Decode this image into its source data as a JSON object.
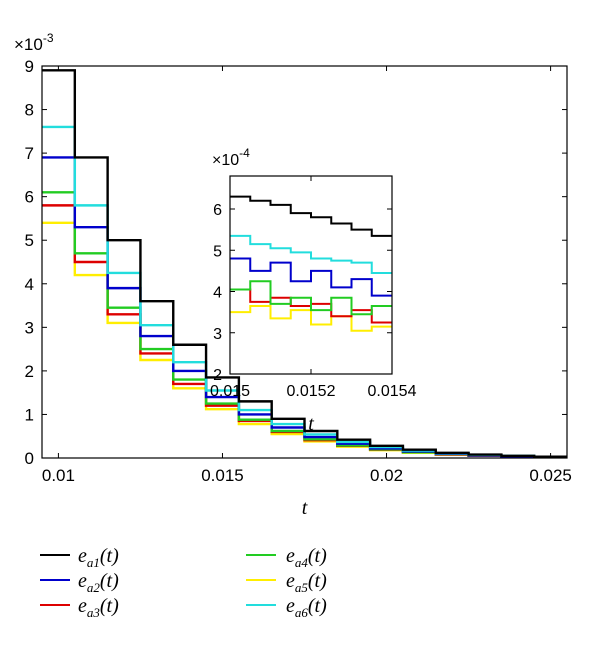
{
  "chart_data": [
    {
      "type": "line",
      "step": true,
      "x_label": "t",
      "y_exponent": "-3",
      "xlim": [
        0.0095,
        0.0255
      ],
      "ylim": [
        0,
        9
      ],
      "x_ticks": [
        0.01,
        0.015,
        0.02,
        0.025
      ],
      "x_tick_labels": [
        "0.01",
        "0.015",
        "0.02",
        "0.025"
      ],
      "y_ticks": [
        0,
        1,
        2,
        3,
        4,
        5,
        6,
        7,
        8,
        9
      ],
      "y_tick_labels": [
        "0",
        "1",
        "2",
        "3",
        "4",
        "5",
        "6",
        "7",
        "8",
        "9"
      ],
      "grid": false,
      "legend_position": "bottom",
      "series": [
        {
          "name": "e_a1(t)",
          "color": "#000000",
          "x": [
            0.0095,
            0.0105,
            0.0115,
            0.0125,
            0.0135,
            0.0145,
            0.0155,
            0.0165,
            0.0175,
            0.0185,
            0.0195,
            0.0205,
            0.0215,
            0.0225,
            0.0235,
            0.0245,
            0.0255
          ],
          "values": [
            8.9,
            6.9,
            5.0,
            3.6,
            2.6,
            1.85,
            1.3,
            0.9,
            0.62,
            0.42,
            0.28,
            0.19,
            0.12,
            0.08,
            0.05,
            0.03,
            0.02
          ]
        },
        {
          "name": "e_a2(t)",
          "color": "#0000cc",
          "x": [
            0.0095,
            0.0105,
            0.0115,
            0.0125,
            0.0135,
            0.0145,
            0.0155,
            0.0165,
            0.0175,
            0.0185,
            0.0195,
            0.0205,
            0.0215,
            0.0225,
            0.0235,
            0.0245,
            0.0255
          ],
          "values": [
            6.9,
            5.3,
            3.9,
            2.8,
            2.0,
            1.4,
            1.0,
            0.7,
            0.48,
            0.33,
            0.22,
            0.15,
            0.1,
            0.06,
            0.04,
            0.03,
            0.02
          ]
        },
        {
          "name": "e_a3(t)",
          "color": "#dd0000",
          "x": [
            0.0095,
            0.0105,
            0.0115,
            0.0125,
            0.0135,
            0.0145,
            0.0155,
            0.0165,
            0.0175,
            0.0185,
            0.0195,
            0.0205,
            0.0215,
            0.0225,
            0.0235,
            0.0245,
            0.0255
          ],
          "values": [
            5.8,
            4.5,
            3.3,
            2.4,
            1.7,
            1.2,
            0.85,
            0.6,
            0.41,
            0.28,
            0.19,
            0.13,
            0.08,
            0.05,
            0.04,
            0.02,
            0.02
          ]
        },
        {
          "name": "e_a4(t)",
          "color": "#22cc22",
          "x": [
            0.0095,
            0.0105,
            0.0115,
            0.0125,
            0.0135,
            0.0145,
            0.0155,
            0.0165,
            0.0175,
            0.0185,
            0.0195,
            0.0205,
            0.0215,
            0.0225,
            0.0235,
            0.0245,
            0.0255
          ],
          "values": [
            6.1,
            4.7,
            3.45,
            2.5,
            1.8,
            1.25,
            0.88,
            0.62,
            0.43,
            0.29,
            0.2,
            0.13,
            0.09,
            0.06,
            0.04,
            0.02,
            0.02
          ]
        },
        {
          "name": "e_a5(t)",
          "color": "#ffee00",
          "x": [
            0.0095,
            0.0105,
            0.0115,
            0.0125,
            0.0135,
            0.0145,
            0.0155,
            0.0165,
            0.0175,
            0.0185,
            0.0195,
            0.0205,
            0.0215,
            0.0225,
            0.0235,
            0.0245,
            0.0255
          ],
          "values": [
            5.4,
            4.2,
            3.1,
            2.25,
            1.6,
            1.12,
            0.78,
            0.55,
            0.38,
            0.26,
            0.18,
            0.12,
            0.08,
            0.05,
            0.03,
            0.02,
            0.01
          ]
        },
        {
          "name": "e_a6(t)",
          "color": "#22dddd",
          "x": [
            0.0095,
            0.0105,
            0.0115,
            0.0125,
            0.0135,
            0.0145,
            0.0155,
            0.0165,
            0.0175,
            0.0185,
            0.0195,
            0.0205,
            0.0215,
            0.0225,
            0.0235,
            0.0245,
            0.0255
          ],
          "values": [
            7.6,
            5.8,
            4.25,
            3.05,
            2.2,
            1.55,
            1.1,
            0.78,
            0.54,
            0.37,
            0.25,
            0.17,
            0.11,
            0.07,
            0.05,
            0.03,
            0.02
          ]
        }
      ]
    },
    {
      "type": "line",
      "step": true,
      "x_label": "t",
      "y_exponent": "-4",
      "xlim": [
        0.015,
        0.0154
      ],
      "ylim": [
        2,
        6.8
      ],
      "x_ticks": [
        0.015,
        0.0152,
        0.0154
      ],
      "x_tick_labels": [
        "0.015",
        "0.0152",
        "0.0154"
      ],
      "y_ticks": [
        2,
        3,
        4,
        5,
        6
      ],
      "y_tick_labels": [
        "2",
        "3",
        "4",
        "5",
        "6"
      ],
      "grid": false,
      "series": [
        {
          "name": "e_a1(t)",
          "color": "#000000",
          "x": [
            0.015,
            0.01505,
            0.0151,
            0.01515,
            0.0152,
            0.01525,
            0.0153,
            0.01535,
            0.0154
          ],
          "values": [
            6.3,
            6.2,
            6.1,
            5.9,
            5.8,
            5.65,
            5.5,
            5.35,
            5.35
          ]
        },
        {
          "name": "e_a2(t)",
          "color": "#0000cc",
          "x": [
            0.015,
            0.01505,
            0.0151,
            0.01515,
            0.0152,
            0.01525,
            0.0153,
            0.01535,
            0.0154
          ],
          "values": [
            4.8,
            4.5,
            4.7,
            4.25,
            4.5,
            4.1,
            4.3,
            3.9,
            3.9
          ]
        },
        {
          "name": "e_a3(t)",
          "color": "#dd0000",
          "x": [
            0.015,
            0.01505,
            0.0151,
            0.01515,
            0.0152,
            0.01525,
            0.0153,
            0.01535,
            0.0154
          ],
          "values": [
            4.05,
            3.75,
            3.85,
            3.65,
            3.7,
            3.4,
            3.55,
            3.25,
            3.25
          ]
        },
        {
          "name": "e_a4(t)",
          "color": "#22cc22",
          "x": [
            0.015,
            0.01505,
            0.0151,
            0.01515,
            0.0152,
            0.01525,
            0.0153,
            0.01535,
            0.0154
          ],
          "values": [
            4.05,
            4.25,
            3.7,
            3.85,
            3.55,
            3.85,
            3.45,
            3.65,
            3.65
          ]
        },
        {
          "name": "e_a5(t)",
          "color": "#ffee00",
          "x": [
            0.015,
            0.01505,
            0.0151,
            0.01515,
            0.0152,
            0.01525,
            0.0153,
            0.01535,
            0.0154
          ],
          "values": [
            3.5,
            3.65,
            3.35,
            3.55,
            3.2,
            3.4,
            3.05,
            3.15,
            3.15
          ]
        },
        {
          "name": "e_a6(t)",
          "color": "#22dddd",
          "x": [
            0.015,
            0.01505,
            0.0151,
            0.01515,
            0.0152,
            0.01525,
            0.0153,
            0.01535,
            0.0154
          ],
          "values": [
            5.35,
            5.15,
            5.05,
            4.95,
            4.8,
            4.75,
            4.7,
            4.45,
            4.45
          ]
        }
      ]
    }
  ],
  "legend": {
    "entries": [
      {
        "base": "e",
        "sub": "a1",
        "suffix": "(t)",
        "color": "#000000"
      },
      {
        "base": "e",
        "sub": "a2",
        "suffix": "(t)",
        "color": "#0000cc"
      },
      {
        "base": "e",
        "sub": "a3",
        "suffix": "(t)",
        "color": "#dd0000"
      },
      {
        "base": "e",
        "sub": "a4",
        "suffix": "(t)",
        "color": "#22cc22"
      },
      {
        "base": "e",
        "sub": "a5",
        "suffix": "(t)",
        "color": "#ffee00"
      },
      {
        "base": "e",
        "sub": "a6",
        "suffix": "(t)",
        "color": "#22dddd"
      }
    ]
  }
}
